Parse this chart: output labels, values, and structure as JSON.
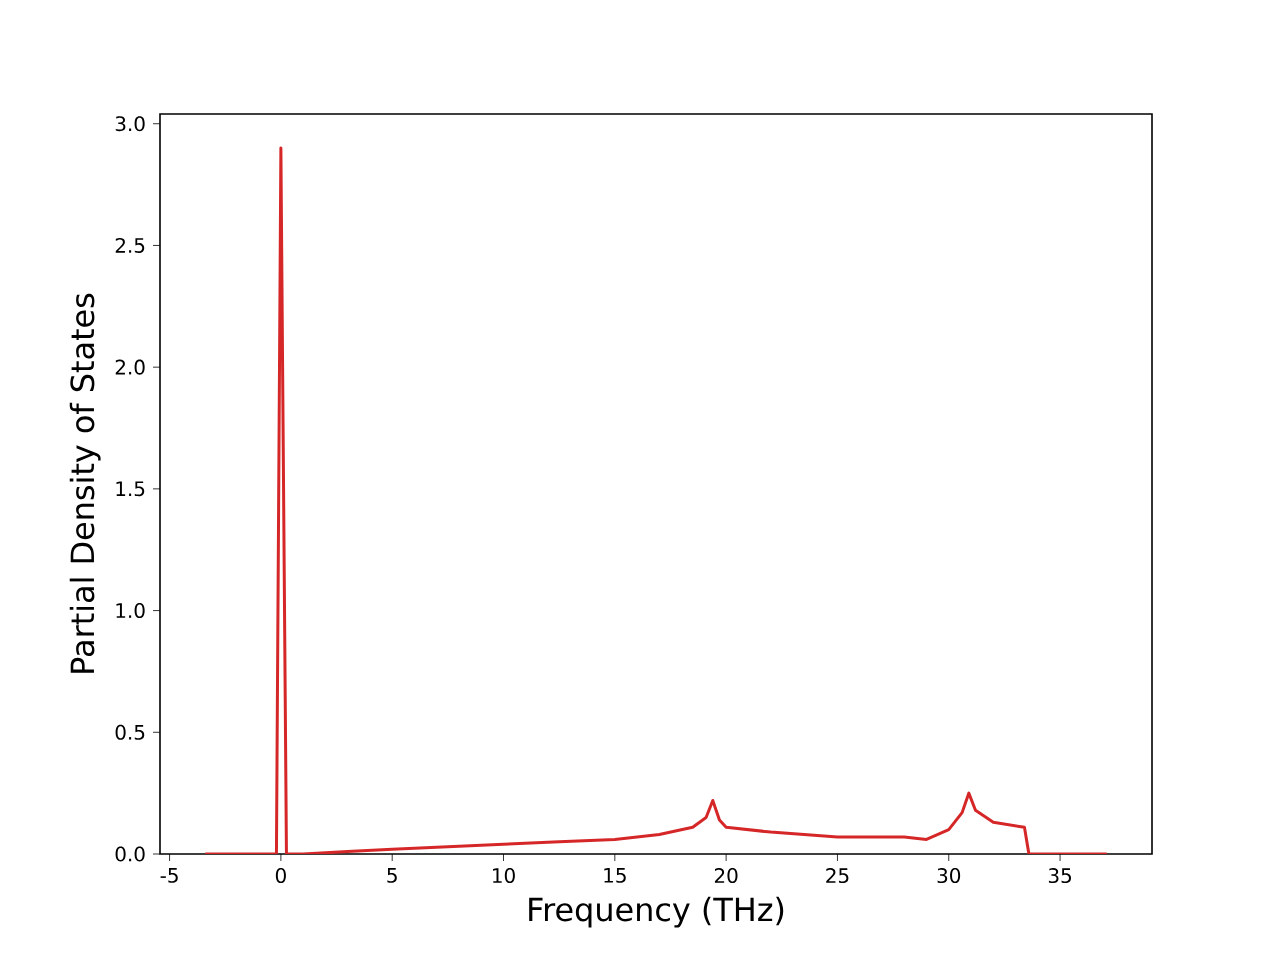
{
  "chart_data": {
    "type": "line",
    "xlabel": "Frequency (THz)",
    "ylabel": "Partial Density of States",
    "x": [
      -3.4,
      -0.2,
      0.0,
      0.25,
      1,
      3,
      5,
      7.5,
      10,
      12.5,
      15,
      17,
      18.5,
      19.1,
      19.4,
      19.7,
      20,
      22,
      25,
      28,
      29,
      30,
      30.6,
      30.9,
      31.2,
      32,
      33.4,
      33.6,
      37.1
    ],
    "series": [
      {
        "color": "#d62728",
        "values": [
          0,
          0,
          2.9,
          0,
          0,
          0.01,
          0.02,
          0.03,
          0.04,
          0.05,
          0.06,
          0.08,
          0.11,
          0.15,
          0.22,
          0.14,
          0.11,
          0.09,
          0.07,
          0.07,
          0.06,
          0.1,
          0.17,
          0.25,
          0.18,
          0.13,
          0.11,
          0,
          0
        ]
      }
    ],
    "xlim": [
      -5.43,
      39.13
    ],
    "ylim": [
      0,
      3.04
    ],
    "xticks": [
      -5,
      0,
      5,
      10,
      15,
      20,
      25,
      30,
      35
    ],
    "yticks": [
      {
        "value": 0,
        "label": "0.0"
      },
      {
        "value": 0.5,
        "label": "0.5"
      },
      {
        "value": 1,
        "label": "1.0"
      },
      {
        "value": 1.5,
        "label": "1.5"
      },
      {
        "value": 2,
        "label": "2.0"
      },
      {
        "value": 2.5,
        "label": "2.5"
      },
      {
        "value": 3,
        "label": "3.0"
      }
    ],
    "grid": false,
    "marker": "none",
    "line_style": "solid"
  }
}
